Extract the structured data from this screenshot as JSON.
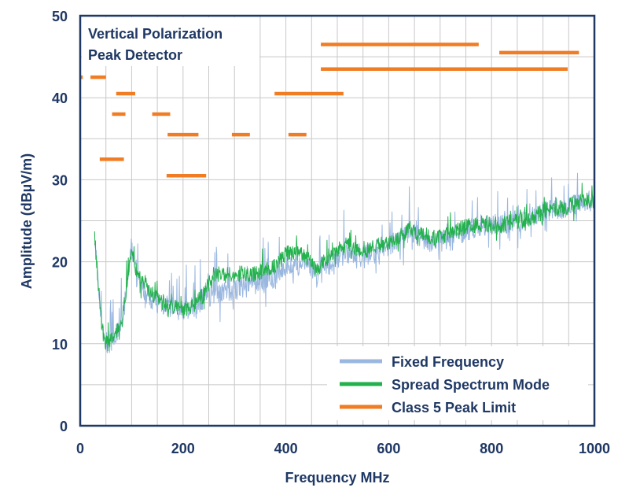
{
  "chart_data": {
    "type": "line",
    "title_lines": [
      "Vertical Polarization",
      "Peak Detector"
    ],
    "xlabel": "Frequency MHz",
    "ylabel": "Amplitude (dBµV/m)",
    "xlim": [
      0,
      1000
    ],
    "ylim": [
      0,
      50
    ],
    "x_ticks": [
      "0",
      "200",
      "400",
      "600",
      "800",
      "1000"
    ],
    "y_ticks": [
      "0",
      "10",
      "20",
      "30",
      "40",
      "50"
    ],
    "grid": true,
    "legend_position": "bottom-right",
    "colors": {
      "fixed": "#9ab7e0",
      "spread": "#22b14c",
      "limit": "#f07d24",
      "axis": "#1f3864",
      "grid": "#c8c8c8"
    },
    "series": [
      {
        "name": "Fixed Frequency",
        "x": [
          28,
          35,
          45,
          55,
          65,
          75,
          85,
          95,
          100,
          110,
          130,
          150,
          175,
          200,
          220,
          240,
          260,
          280,
          300,
          320,
          340,
          360,
          380,
          400,
          420,
          440,
          460,
          480,
          500,
          520,
          540,
          560,
          580,
          600,
          620,
          640,
          660,
          680,
          700,
          720,
          740,
          760,
          780,
          800,
          820,
          840,
          860,
          880,
          900,
          920,
          940,
          960,
          980,
          1000
        ],
        "y": [
          23.5,
          17,
          11,
          9.5,
          10,
          12,
          14,
          19,
          22,
          18,
          16,
          15,
          14.5,
          14,
          14.5,
          15.5,
          16,
          16.5,
          16.5,
          17,
          17.5,
          17.5,
          18,
          19.5,
          19.5,
          20,
          18.5,
          19.5,
          20.5,
          21,
          21,
          21,
          21.5,
          22,
          22.5,
          23.5,
          23,
          22.5,
          22.5,
          23,
          23.5,
          24,
          24.5,
          24.5,
          24.5,
          25,
          25,
          25.5,
          26,
          26.5,
          26.5,
          27,
          27.5,
          27.5
        ]
      },
      {
        "name": "Spread Spectrum Mode",
        "x": [
          28,
          35,
          45,
          55,
          65,
          75,
          85,
          95,
          100,
          110,
          130,
          150,
          175,
          200,
          220,
          240,
          260,
          280,
          300,
          320,
          340,
          360,
          380,
          400,
          420,
          440,
          460,
          480,
          500,
          520,
          540,
          560,
          580,
          600,
          620,
          640,
          660,
          680,
          700,
          720,
          740,
          760,
          780,
          800,
          820,
          840,
          860,
          880,
          900,
          920,
          940,
          960,
          980,
          1000
        ],
        "y": [
          23.5,
          17,
          11,
          10,
          10.5,
          12,
          14.5,
          19.5,
          22,
          18.5,
          16.5,
          15.5,
          14.5,
          14,
          14.5,
          16,
          18.5,
          18.5,
          18.5,
          18.5,
          18.5,
          19,
          19.5,
          21,
          21,
          20.5,
          19,
          20.5,
          21.5,
          22,
          21.5,
          21.5,
          22,
          22.5,
          23,
          24,
          23.5,
          23,
          23,
          23.5,
          24,
          24.5,
          24.5,
          24.5,
          24.5,
          25,
          25,
          25.5,
          26,
          26.5,
          26.5,
          27,
          27.5,
          27.5
        ]
      },
      {
        "name": "Class 5 Peak Limit",
        "segments": [
          {
            "x": [
              0,
              5
            ],
            "y": [
              42.5,
              42.5
            ]
          },
          {
            "x": [
              20,
              50
            ],
            "y": [
              42.5,
              42.5
            ]
          },
          {
            "x": [
              70,
              107
            ],
            "y": [
              40.5,
              40.5
            ]
          },
          {
            "x": [
              62,
              88
            ],
            "y": [
              38,
              38
            ]
          },
          {
            "x": [
              140,
              175
            ],
            "y": [
              38,
              38
            ]
          },
          {
            "x": [
              170,
              230
            ],
            "y": [
              35.5,
              35.5
            ]
          },
          {
            "x": [
              295,
              330
            ],
            "y": [
              35.5,
              35.5
            ]
          },
          {
            "x": [
              405,
              440
            ],
            "y": [
              35.5,
              35.5
            ]
          },
          {
            "x": [
              38,
              85
            ],
            "y": [
              32.5,
              32.5
            ]
          },
          {
            "x": [
              168,
              245
            ],
            "y": [
              30.5,
              30.5
            ]
          },
          {
            "x": [
              378,
              512
            ],
            "y": [
              40.5,
              40.5
            ]
          },
          {
            "x": [
              468,
              775
            ],
            "y": [
              46.5,
              46.5
            ]
          },
          {
            "x": [
              815,
              970
            ],
            "y": [
              45.5,
              45.5
            ]
          },
          {
            "x": [
              468,
              948
            ],
            "y": [
              43.5,
              43.5
            ]
          }
        ]
      }
    ]
  }
}
